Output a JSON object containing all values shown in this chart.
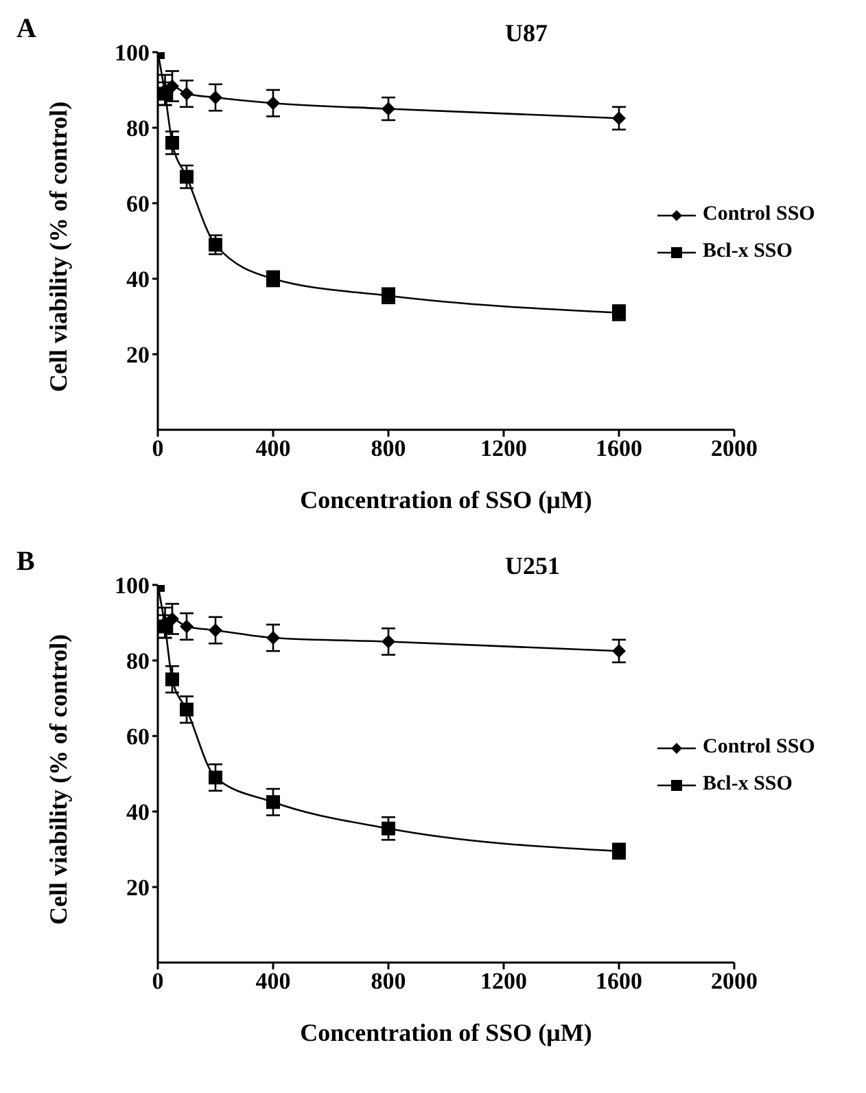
{
  "chart_data": [
    {
      "type": "line",
      "title": "U87",
      "xlabel": "Concentration of SSO (μM)",
      "ylabel": "Cell viability (% of control)",
      "annotations": [
        "A"
      ],
      "x": [
        0,
        25,
        50,
        100,
        200,
        400,
        800,
        1600
      ],
      "series": [
        {
          "name": "Control SSO",
          "color": "#000000",
          "marker": "diamond",
          "values": [
            null,
            90,
            91,
            89,
            88,
            86.5,
            85,
            82.5
          ],
          "errors": [
            null,
            4,
            4,
            3.5,
            3.5,
            3.5,
            3,
            3
          ]
        },
        {
          "name": "Bcl-x SSO",
          "color": "#000000",
          "marker": "square",
          "values": [
            100,
            89,
            76,
            67,
            49,
            40,
            35.5,
            31
          ],
          "errors": [
            null,
            3,
            3,
            3,
            2.5,
            2,
            2,
            2
          ]
        }
      ],
      "xlim": [
        0,
        2000
      ],
      "xticks": [
        0,
        400,
        800,
        1200,
        1600,
        2000
      ],
      "ylim": [
        0,
        100
      ],
      "yticks": [
        20,
        40,
        60,
        80,
        100
      ],
      "legend": "right",
      "grid": false
    },
    {
      "type": "line",
      "title": "U251",
      "xlabel": "Concentration of SSO (μM)",
      "ylabel": "Cell viability (% of control)",
      "annotations": [
        "B"
      ],
      "x": [
        0,
        25,
        50,
        100,
        200,
        400,
        800,
        1600
      ],
      "series": [
        {
          "name": "Control SSO",
          "color": "#000000",
          "marker": "diamond",
          "values": [
            null,
            90,
            91,
            89,
            88,
            86,
            85,
            82.5
          ],
          "errors": [
            null,
            4,
            4,
            3.5,
            3.5,
            3.5,
            3.5,
            3
          ]
        },
        {
          "name": "Bcl-x SSO",
          "color": "#000000",
          "marker": "square",
          "values": [
            100,
            89,
            75,
            67,
            49,
            42.5,
            35.5,
            29.5
          ],
          "errors": [
            null,
            3,
            3.5,
            3.5,
            3.5,
            3.5,
            3,
            2
          ]
        }
      ],
      "xlim": [
        0,
        2000
      ],
      "xticks": [
        0,
        400,
        800,
        1200,
        1600,
        2000
      ],
      "ylim": [
        0,
        100
      ],
      "yticks": [
        20,
        40,
        60,
        80,
        100
      ],
      "legend": "right",
      "grid": false
    }
  ]
}
